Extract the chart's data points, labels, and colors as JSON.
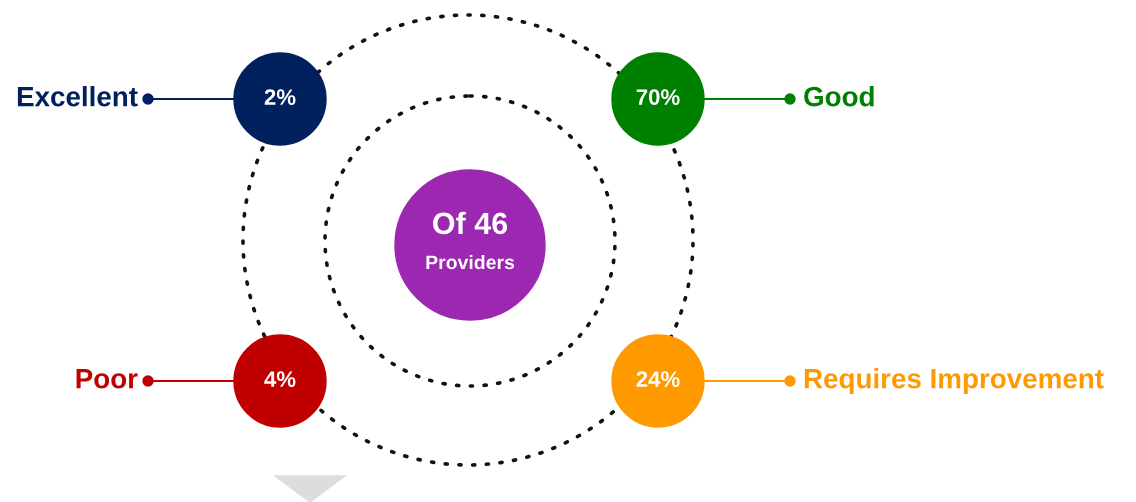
{
  "chart_data": {
    "type": "other",
    "categories": [
      "Excellent",
      "Good",
      "Poor",
      "Requires Improvement"
    ],
    "values": [
      2,
      70,
      4,
      24
    ],
    "value_labels": [
      "2%",
      "70%",
      "4%",
      "24%"
    ],
    "colors": [
      "#00215e",
      "#008000",
      "#c00000",
      "#ff9900"
    ],
    "annotations": [
      "Of 46",
      "Providers"
    ]
  }
}
